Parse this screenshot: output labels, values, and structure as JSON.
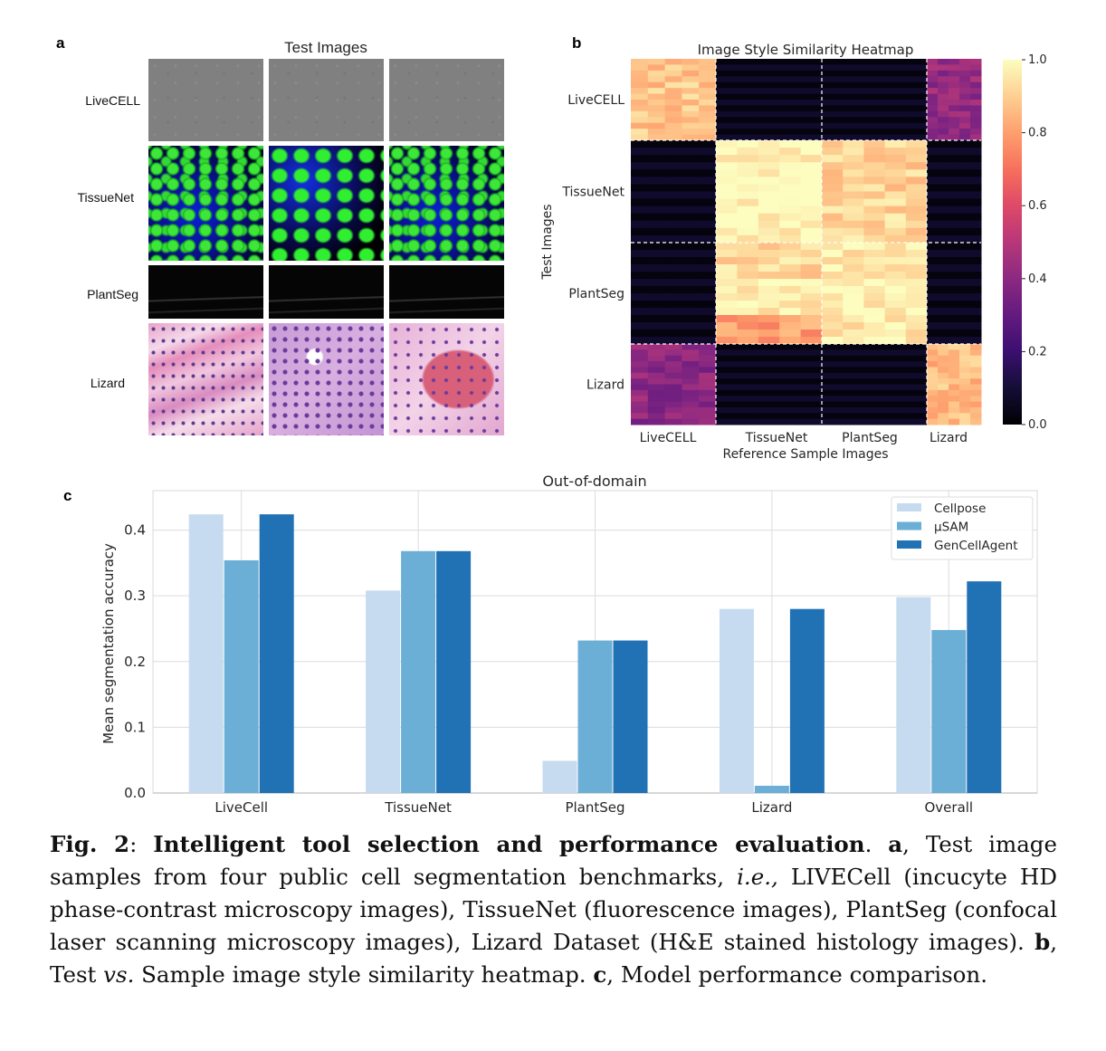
{
  "panel_a": {
    "letter": "a",
    "title": "Test Images",
    "rows": [
      {
        "label": "LiveCELL",
        "kind": "phase-contrast-gray"
      },
      {
        "label": "TissueNet",
        "kind": "fluorescence-green-blue"
      },
      {
        "label": "PlantSeg",
        "kind": "confocal-dark"
      },
      {
        "label": "Lizard",
        "kind": "he-stained-pink"
      }
    ]
  },
  "panel_b": {
    "letter": "b",
    "chart_data": {
      "type": "heatmap",
      "title": "Image Style Similarity Heatmap",
      "xlabel": "Reference Sample Images",
      "ylabel": "Test Images",
      "x_groups": [
        "LiveCELL",
        "TissueNet",
        "PlantSeg",
        "Lizard"
      ],
      "y_groups": [
        "LiveCELL",
        "TissueNet",
        "PlantSeg",
        "Lizard"
      ],
      "block_values": [
        [
          0.88,
          0.02,
          0.02,
          0.42
        ],
        [
          0.02,
          0.99,
          0.91,
          0.02
        ],
        [
          0.02,
          0.9,
          0.97,
          0.02
        ],
        [
          0.4,
          0.02,
          0.02,
          0.86
        ]
      ],
      "plantseg_tissuenet_subrows": [
        0.92,
        0.98,
        0.8
      ],
      "colormap": "magma",
      "colorbar_ticks": [
        "0.0",
        "0.2",
        "0.4",
        "0.6",
        "0.8",
        "1.0"
      ],
      "vmin": 0.0,
      "vmax": 1.0
    }
  },
  "panel_c": {
    "letter": "c",
    "chart_data": {
      "type": "bar",
      "title": "Out-of-domain",
      "xlabel": "",
      "ylabel": "Mean segmentation accuracy",
      "categories": [
        "LiveCell",
        "TissueNet",
        "PlantSeg",
        "Lizard",
        "Overall"
      ],
      "series": [
        {
          "name": "Cellpose",
          "color": "#c6dbef",
          "values": [
            0.424,
            0.308,
            0.049,
            0.28,
            0.298
          ]
        },
        {
          "name": "μSAM",
          "color": "#6baed6",
          "values": [
            0.354,
            0.368,
            0.232,
            0.011,
            0.248
          ]
        },
        {
          "name": "GenCellAgent",
          "color": "#2171b5",
          "values": [
            0.424,
            0.368,
            0.232,
            0.28,
            0.322
          ]
        }
      ],
      "ylim": [
        0.0,
        0.46
      ],
      "yticks": [
        "0.0",
        "0.1",
        "0.2",
        "0.3",
        "0.4"
      ],
      "grid": true,
      "legend": "top-right"
    }
  },
  "caption": {
    "fig_label": "Fig. 2",
    "title": "Intelligent tool selection and performance evaluation",
    "a_letter": "a",
    "a_text": ", Test image samples from four public cell segmentation benchmarks, ",
    "ie": "i.e.,",
    "a_text2": " LIVECell (incucyte HD phase-contrast microscopy images), TissueNet (fluorescence images), PlantSeg (confocal laser scanning microscopy images), Lizard Dataset (H&E stained histology images). ",
    "b_letter": "b",
    "b_text": ", Test ",
    "vs": "vs.",
    "b_text2": " Sample image style similarity heatmap. ",
    "c_letter": "c",
    "c_text": ", Model performance comparison."
  }
}
